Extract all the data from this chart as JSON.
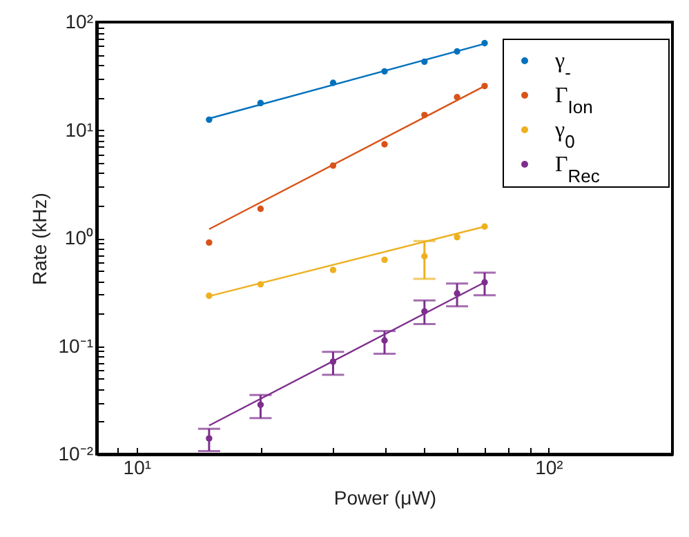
{
  "chart_data": {
    "type": "scatter",
    "xlabel": "Power (μW)",
    "ylabel": "Rate (kHz)",
    "log": "xy",
    "grid": false,
    "legend": "top right",
    "marker": "circle",
    "xlim": [
      8,
      200
    ],
    "xticks": [
      {
        "value": 8,
        "label": null
      },
      {
        "value": 9,
        "label": null
      },
      {
        "value": 10,
        "label": "10¹"
      },
      {
        "value": 20,
        "label": null
      },
      {
        "value": 30,
        "label": null
      },
      {
        "value": 40,
        "label": null
      },
      {
        "value": 50,
        "label": null
      },
      {
        "value": 60,
        "label": null
      },
      {
        "value": 70,
        "label": null
      },
      {
        "value": 80,
        "label": null
      },
      {
        "value": 90,
        "label": null
      },
      {
        "value": 100,
        "label": "10²"
      },
      {
        "value": 200,
        "label": null
      }
    ],
    "ylim": [
      0.01,
      100
    ],
    "yticks": [
      {
        "value": 0.01,
        "label": "10⁻²"
      },
      {
        "value": 0.02,
        "label": null
      },
      {
        "value": 0.03,
        "label": null
      },
      {
        "value": 0.04,
        "label": null
      },
      {
        "value": 0.05,
        "label": null
      },
      {
        "value": 0.06,
        "label": null
      },
      {
        "value": 0.07,
        "label": null
      },
      {
        "value": 0.08,
        "label": null
      },
      {
        "value": 0.09,
        "label": null
      },
      {
        "value": 0.1,
        "label": "10⁻¹"
      },
      {
        "value": 0.2,
        "label": null
      },
      {
        "value": 0.3,
        "label": null
      },
      {
        "value": 0.4,
        "label": null
      },
      {
        "value": 0.5,
        "label": null
      },
      {
        "value": 0.6,
        "label": null
      },
      {
        "value": 0.7,
        "label": null
      },
      {
        "value": 0.8,
        "label": null
      },
      {
        "value": 0.9,
        "label": null
      },
      {
        "value": 1,
        "label": "10⁰"
      },
      {
        "value": 2,
        "label": null
      },
      {
        "value": 3,
        "label": null
      },
      {
        "value": 4,
        "label": null
      },
      {
        "value": 5,
        "label": null
      },
      {
        "value": 6,
        "label": null
      },
      {
        "value": 7,
        "label": null
      },
      {
        "value": 8,
        "label": null
      },
      {
        "value": 9,
        "label": null
      },
      {
        "value": 10,
        "label": "10¹"
      },
      {
        "value": 20,
        "label": null
      },
      {
        "value": 30,
        "label": null
      },
      {
        "value": 40,
        "label": null
      },
      {
        "value": 50,
        "label": null
      },
      {
        "value": 60,
        "label": null
      },
      {
        "value": 70,
        "label": null
      },
      {
        "value": 80,
        "label": null
      },
      {
        "value": 90,
        "label": null
      },
      {
        "value": 100,
        "label": "10²"
      }
    ],
    "series": [
      {
        "name": "γ$_{-}$",
        "color": "#0072bd",
        "x": [
          15,
          20,
          30,
          40,
          50,
          60,
          70
        ],
        "values": [
          12.5,
          17.8,
          27.4,
          35,
          43,
          53.5,
          63.8
        ]
      },
      {
        "name": "Γ$_{Ion}$",
        "color": "#d95319",
        "x": [
          15,
          20,
          30,
          40,
          50,
          60,
          70
        ],
        "values": [
          0.91,
          1.87,
          4.7,
          7.4,
          13.8,
          20.2,
          25.6
        ]
      },
      {
        "name": "γ$_{0}$",
        "color": "#edb120",
        "x": [
          15,
          20,
          30,
          40,
          50,
          60,
          70
        ],
        "values": [
          0.293,
          0.374,
          0.507,
          0.63,
          0.68,
          1.02,
          1.28
        ],
        "errors": [
          null,
          null,
          null,
          null,
          [
            0.42,
            0.94
          ],
          null,
          null
        ]
      },
      {
        "name": "Γ$_{Rec}$",
        "color": "#7e2f8e",
        "x": [
          15,
          20,
          30,
          40,
          50,
          60,
          70
        ],
        "values": [
          0.014,
          0.0287,
          0.072,
          0.113,
          0.21,
          0.308,
          0.39
        ],
        "errors": [
          [
            0.0107,
            0.0172
          ],
          [
            0.0216,
            0.0353
          ],
          [
            0.0543,
            0.0887
          ],
          [
            0.085,
            0.138
          ],
          [
            0.16,
            0.265
          ],
          [
            0.234,
            0.38
          ],
          [
            0.296,
            0.48
          ]
        ]
      },
      {
        "type": "line",
        "marker": "none",
        "color": "#0072bd",
        "x": [
          15,
          70
        ],
        "values": [
          12.8,
          63
        ]
      },
      {
        "type": "line",
        "marker": "none",
        "color": "#d95319",
        "x": [
          15,
          70
        ],
        "values": [
          1.21,
          25.6
        ]
      },
      {
        "type": "line",
        "marker": "none",
        "color": "#edb120",
        "x": [
          15,
          70
        ],
        "values": [
          0.29,
          1.28
        ]
      },
      {
        "type": "line",
        "marker": "none",
        "color": "#7e2f8e",
        "x": [
          15,
          70
        ],
        "values": [
          0.0184,
          0.39
        ]
      }
    ]
  }
}
